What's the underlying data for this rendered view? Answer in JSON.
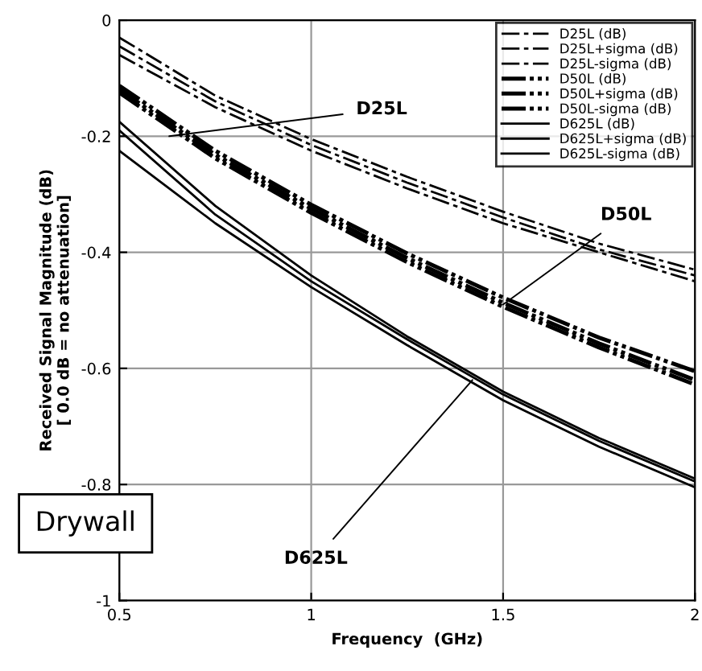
{
  "chart_data": {
    "type": "line",
    "xlabel": "Frequency  (GHz)",
    "ylabel": "Received Signal Magnitude (dB)\n[ 0.0 dB = no attenuation]",
    "x": [
      0.5,
      0.75,
      1.0,
      1.25,
      1.5,
      1.75,
      2.0
    ],
    "series": [
      {
        "name": "D25L (dB)",
        "color": "#000000",
        "line_style": "dashed",
        "values": [
          -0.045,
          -0.14,
          -0.215,
          -0.28,
          -0.34,
          -0.395,
          -0.44
        ]
      },
      {
        "name": "D25L+sigma (dB)",
        "color": "#000000",
        "line_style": "dashed",
        "values": [
          -0.03,
          -0.13,
          -0.205,
          -0.27,
          -0.33,
          -0.385,
          -0.43
        ]
      },
      {
        "name": "D25L-sigma (dB)",
        "color": "#000000",
        "line_style": "dashed",
        "values": [
          -0.06,
          -0.15,
          -0.225,
          -0.29,
          -0.35,
          -0.4,
          -0.45
        ]
      },
      {
        "name": "D50L (dB)",
        "color": "#000000",
        "line_style": "dotted",
        "values": [
          -0.12,
          -0.232,
          -0.325,
          -0.41,
          -0.487,
          -0.557,
          -0.62
        ]
      },
      {
        "name": "D50L+sigma (dB)",
        "color": "#000000",
        "line_style": "dotted",
        "values": [
          -0.113,
          -0.225,
          -0.318,
          -0.402,
          -0.478,
          -0.547,
          -0.605
        ]
      },
      {
        "name": "D50L-sigma (dB)",
        "color": "#000000",
        "line_style": "dotted",
        "values": [
          -0.125,
          -0.238,
          -0.332,
          -0.417,
          -0.494,
          -0.564,
          -0.628
        ]
      },
      {
        "name": "D625L (dB)",
        "color": "#000000",
        "line_style": "solid",
        "values": [
          -0.19,
          -0.335,
          -0.45,
          -0.55,
          -0.645,
          -0.725,
          -0.795
        ]
      },
      {
        "name": "D625L+sigma (dB)",
        "color": "#000000",
        "line_style": "solid",
        "values": [
          -0.175,
          -0.32,
          -0.44,
          -0.545,
          -0.64,
          -0.72,
          -0.79
        ]
      },
      {
        "name": "D625L-sigma (dB)",
        "color": "#000000",
        "line_style": "solid",
        "values": [
          -0.225,
          -0.35,
          -0.46,
          -0.56,
          -0.655,
          -0.735,
          -0.805
        ]
      }
    ],
    "xlim": [
      0.5,
      2
    ],
    "ylim": [
      -1,
      0
    ],
    "xticks": [
      0.5,
      1,
      1.5,
      2
    ],
    "yticks": [
      -1,
      -0.8,
      -0.6,
      -0.4,
      -0.2,
      0
    ],
    "grid": true,
    "legend": "top right",
    "marker": "none",
    "annotations": [
      {
        "text": "D25L",
        "x": 0.63,
        "y": -0.2
      },
      {
        "text": "D50L",
        "x": 1.5,
        "y": -0.49
      },
      {
        "text": "D625L",
        "x": 1.42,
        "y": -0.62
      },
      "Drywall"
    ]
  }
}
